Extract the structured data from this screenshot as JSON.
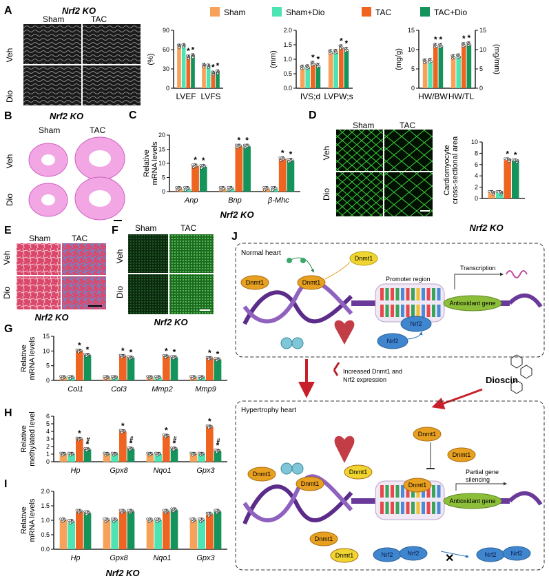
{
  "legend": {
    "items": [
      {
        "label": "Sham",
        "color": "#f7a25a"
      },
      {
        "label": "Sham+Dio",
        "color": "#4ee3b3"
      },
      {
        "label": "TAC",
        "color": "#ef6420"
      },
      {
        "label": "TAC+Dio",
        "color": "#14935a"
      }
    ]
  },
  "panelA": {
    "letter": "A",
    "title": "Nrf2 KO",
    "col_labels": [
      "Sham",
      "TAC"
    ],
    "row_labels": [
      "Veh",
      "Dio"
    ]
  },
  "panelB": {
    "letter": "B",
    "title": "Nrf2 KO",
    "col_labels": [
      "Sham",
      "TAC"
    ],
    "row_labels": [
      "Veh",
      "Dio"
    ]
  },
  "panelC": {
    "letter": "C",
    "footer": "Nrf2 KO"
  },
  "panelD": {
    "letter": "D",
    "col_labels": [
      "Sham",
      "TAC"
    ],
    "row_labels": [
      "Veh",
      "Dio"
    ],
    "footer": "Nrf2 KO"
  },
  "panelE": {
    "letter": "E",
    "col_labels": [
      "Sham",
      "TAC"
    ],
    "row_labels": [
      "Veh",
      "Dio"
    ],
    "footer": "Nrf2 KO"
  },
  "panelF": {
    "letter": "F",
    "col_labels": [
      "Sham",
      "TAC"
    ],
    "row_labels": [
      "Veh",
      "Dio"
    ],
    "footer": "Nrf2 KO"
  },
  "panelG": {
    "letter": "G"
  },
  "panelH": {
    "letter": "H"
  },
  "panelI": {
    "letter": "I",
    "footer": "Nrf2 KO"
  },
  "panelJ": {
    "letter": "J",
    "normal_title": "Normal heart",
    "hyper_title": "Hypertrophy heart",
    "dnmt1": "Dnmt1",
    "nrf2": "Nrf2",
    "promoter": "Promoter region",
    "transcription": "Transcription",
    "antioxidant": "Antioxidant gene",
    "increased": "Increased Dnmt1 and Nrf2 expression",
    "dioscin": "Dioscin",
    "partial": "Partial gene silencing"
  },
  "chart_data": [
    {
      "id": "A1",
      "type": "bar",
      "categories": [
        "LVEF",
        "LVFS"
      ],
      "ylabel": "(%)",
      "ylim": [
        0,
        90
      ],
      "yticks": [
        0,
        30,
        60,
        90
      ],
      "series": [
        {
          "name": "Sham",
          "values": [
            65,
            35
          ]
        },
        {
          "name": "Sham+Dio",
          "values": [
            66,
            34
          ]
        },
        {
          "name": "TAC",
          "values": [
            48,
            23
          ]
        },
        {
          "name": "TAC+Dio",
          "values": [
            50,
            25
          ]
        }
      ],
      "stars": [
        [
          false,
          false,
          true,
          true
        ],
        [
          false,
          false,
          true,
          true
        ]
      ]
    },
    {
      "id": "A2",
      "type": "bar",
      "categories": [
        "IVS;d",
        "LVPW;s"
      ],
      "ylabel": "(mm)",
      "ylim": [
        0,
        2.0
      ],
      "yticks": [
        0.0,
        0.5,
        1.0,
        1.5,
        2.0
      ],
      "series": [
        {
          "name": "Sham",
          "values": [
            0.72,
            1.25
          ]
        },
        {
          "name": "Sham+Dio",
          "values": [
            0.73,
            1.26
          ]
        },
        {
          "name": "TAC",
          "values": [
            0.85,
            1.42
          ]
        },
        {
          "name": "TAC+Dio",
          "values": [
            0.78,
            1.33
          ]
        }
      ],
      "stars": [
        [
          false,
          false,
          true,
          true
        ],
        [
          false,
          false,
          true,
          true
        ]
      ]
    },
    {
      "id": "A3",
      "type": "bar",
      "categories": [
        "HW/BW",
        "HW/TL"
      ],
      "ylabel": "(mg/g)",
      "ylabel_right": "(mg/mm)",
      "ylim": [
        0,
        15
      ],
      "yticks": [
        0,
        5,
        10,
        15
      ],
      "series": [
        {
          "name": "Sham",
          "values": [
            7.0,
            8.1
          ]
        },
        {
          "name": "Sham+Dio",
          "values": [
            7.1,
            8.3
          ]
        },
        {
          "name": "TAC",
          "values": [
            11.0,
            11.2
          ]
        },
        {
          "name": "TAC+Dio",
          "values": [
            11.0,
            11.4
          ]
        }
      ],
      "stars": [
        [
          false,
          false,
          true,
          true
        ],
        [
          false,
          false,
          true,
          true
        ]
      ]
    },
    {
      "id": "C",
      "type": "bar",
      "categories": [
        "Anp",
        "Bnp",
        "β-Mhc"
      ],
      "ylabel": "Relative mRNA levels",
      "ylim": [
        0,
        20
      ],
      "yticks": [
        0,
        5,
        10,
        15,
        20
      ],
      "series": [
        {
          "name": "Sham",
          "values": [
            1,
            1,
            1
          ]
        },
        {
          "name": "Sham+Dio",
          "values": [
            1,
            1,
            1
          ]
        },
        {
          "name": "TAC",
          "values": [
            9,
            16,
            11.5
          ]
        },
        {
          "name": "TAC+Dio",
          "values": [
            8.8,
            16,
            11
          ]
        }
      ],
      "stars": [
        [
          false,
          false,
          true,
          true
        ],
        [
          false,
          false,
          true,
          true
        ],
        [
          false,
          false,
          true,
          true
        ]
      ]
    },
    {
      "id": "D",
      "type": "bar",
      "categories": [
        ""
      ],
      "ylabel": "Cardiomyocyte cross-sectional area",
      "ylim": [
        0,
        10
      ],
      "yticks": [
        0,
        2,
        4,
        6,
        8,
        10
      ],
      "series": [
        {
          "name": "Sham",
          "values": [
            1
          ]
        },
        {
          "name": "Sham+Dio",
          "values": [
            1
          ]
        },
        {
          "name": "TAC",
          "values": [
            6.8
          ]
        },
        {
          "name": "TAC+Dio",
          "values": [
            6.6
          ]
        }
      ],
      "stars": [
        [
          false,
          false,
          true,
          true
        ]
      ]
    },
    {
      "id": "G",
      "type": "bar",
      "categories": [
        "Col1",
        "Col3",
        "Mmp2",
        "Mmp9"
      ],
      "ylabel": "Relative mRNA levels",
      "ylim": [
        0,
        15
      ],
      "yticks": [
        0,
        5,
        10,
        15
      ],
      "series": [
        {
          "name": "Sham",
          "values": [
            1,
            1,
            1,
            1
          ]
        },
        {
          "name": "Sham+Dio",
          "values": [
            1,
            1,
            1,
            1
          ]
        },
        {
          "name": "TAC",
          "values": [
            10,
            8.2,
            8.1,
            7.5
          ]
        },
        {
          "name": "TAC+Dio",
          "values": [
            8.6,
            7.7,
            7.8,
            7.1
          ]
        }
      ],
      "stars": [
        [
          false,
          false,
          true,
          true
        ],
        [
          false,
          false,
          true,
          true
        ],
        [
          false,
          false,
          true,
          true
        ],
        [
          false,
          false,
          true,
          true
        ]
      ]
    },
    {
      "id": "H",
      "type": "bar",
      "categories": [
        "Hp",
        "Gpx8",
        "Nqo1",
        "Gpx3"
      ],
      "ylabel": "Relative methylated level",
      "ylim": [
        0,
        6
      ],
      "yticks": [
        0,
        1,
        2,
        3,
        4,
        5,
        6
      ],
      "series": [
        {
          "name": "Sham",
          "values": [
            1,
            1,
            1,
            1
          ]
        },
        {
          "name": "Sham+Dio",
          "values": [
            1,
            1,
            1,
            1
          ]
        },
        {
          "name": "TAC",
          "values": [
            3.0,
            4.0,
            3.4,
            4.6
          ]
        },
        {
          "name": "TAC+Dio",
          "values": [
            1.6,
            1.7,
            1.7,
            1.4
          ]
        }
      ],
      "stars": [
        [
          false,
          false,
          true,
          true
        ],
        [
          false,
          false,
          true,
          true
        ],
        [
          false,
          false,
          true,
          true
        ],
        [
          false,
          false,
          true,
          true
        ]
      ],
      "hash": [
        [
          false,
          false,
          false,
          true
        ],
        [
          false,
          false,
          false,
          true
        ],
        [
          false,
          false,
          false,
          true
        ],
        [
          false,
          false,
          false,
          true
        ]
      ]
    },
    {
      "id": "I",
      "type": "bar",
      "categories": [
        "Hp",
        "Gpx8",
        "Nqo1",
        "Gpx3"
      ],
      "ylabel": "Relative mRNA levels",
      "ylim": [
        0,
        2.0
      ],
      "yticks": [
        0.0,
        0.5,
        1.0,
        1.5,
        2.0
      ],
      "series": [
        {
          "name": "Sham",
          "values": [
            1.0,
            1.0,
            1.0,
            1.0
          ]
        },
        {
          "name": "Sham+Dio",
          "values": [
            0.95,
            1.0,
            1.0,
            1.0
          ]
        },
        {
          "name": "TAC",
          "values": [
            1.3,
            1.3,
            1.3,
            1.2
          ]
        },
        {
          "name": "TAC+Dio",
          "values": [
            1.25,
            1.3,
            1.35,
            1.3
          ]
        }
      ]
    }
  ]
}
